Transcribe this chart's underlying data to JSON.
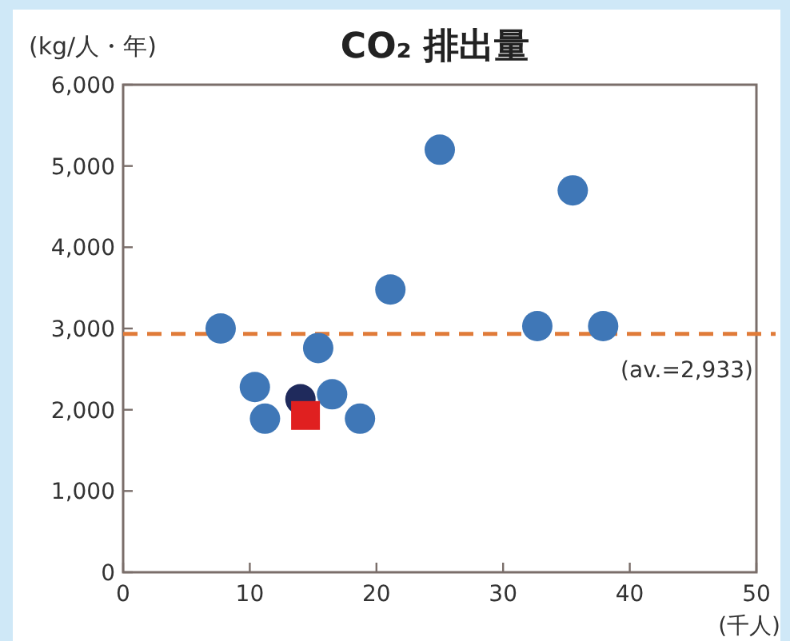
{
  "chart_data": {
    "type": "scatter",
    "title": "CO₂ 排出量",
    "ylabel": "(kg/人・年)",
    "xlabel": "(千人)",
    "xlim": [
      0,
      50
    ],
    "xticks": [
      0,
      10,
      20,
      30,
      40,
      50
    ],
    "ylim": [
      0,
      6000
    ],
    "yticks": [
      {
        "value": 0,
        "label": "0"
      },
      {
        "value": 1000,
        "label": "1,000"
      },
      {
        "value": 2000,
        "label": "2,000"
      },
      {
        "value": 3000,
        "label": "3,000"
      },
      {
        "value": 4000,
        "label": "4,000"
      },
      {
        "value": 5000,
        "label": "5,000"
      },
      {
        "value": 6000,
        "label": "6,000"
      }
    ],
    "grid": false,
    "marker": "circle",
    "series": [
      {
        "color": "#3f77b7",
        "x": [
          7.7,
          10.4,
          11.2,
          15.4,
          16.5,
          18.7,
          21.1,
          25.0,
          32.7,
          35.5,
          37.9
        ],
        "values": [
          3000,
          2280,
          1890,
          2760,
          2190,
          1890,
          3480,
          5200,
          3030,
          4700,
          3030
        ]
      },
      {
        "color": "#1f2a5c",
        "x": [
          14.0
        ],
        "values": [
          2130
        ]
      },
      {
        "color": "#e02020",
        "marker": "square",
        "x": [
          14.4
        ],
        "values": [
          1930
        ]
      }
    ],
    "ref_lines": [
      {
        "axis": "y",
        "value": 2933,
        "label": "(av.=2,933)",
        "color": "#e07b39",
        "line_style": "dashed"
      }
    ]
  }
}
